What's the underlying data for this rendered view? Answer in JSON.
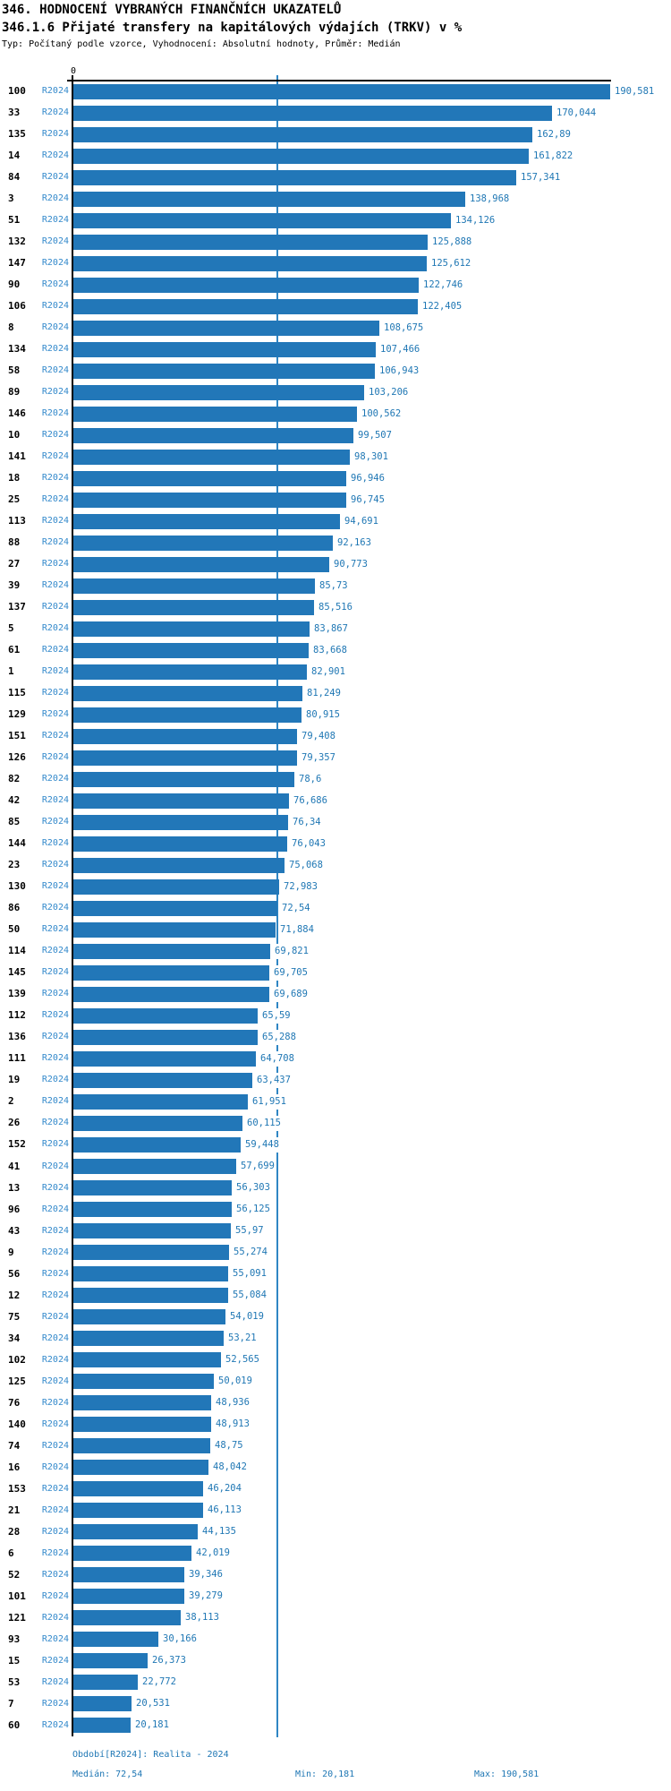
{
  "header": {
    "title": "346. HODNOCENÍ VYBRANÝCH FINANČNÍCH UKAZATELŮ",
    "subtitle": "346.1.6 Přijaté transfery na kapitálových výdajích (TRKV) v %",
    "meta": "Typ: Počítaný podle vzorce, Vyhodnocení: Absolutní hodnoty, Průměr: Medián"
  },
  "axis": {
    "zero_label": "0"
  },
  "chart_data": {
    "type": "bar",
    "orientation": "horizontal",
    "title": "346.1.6 Přijaté transfery na kapitálových výdajích (TRKV) v %",
    "series_label": "R2024",
    "xlabel": "",
    "ylabel": "",
    "xlim": [
      0,
      212
    ],
    "grid": false,
    "median_value": 72.54,
    "min_value": 20.181,
    "max_value": 190.581,
    "categories": [
      "100",
      "33",
      "135",
      "14",
      "84",
      "3",
      "51",
      "132",
      "147",
      "90",
      "106",
      "8",
      "134",
      "58",
      "89",
      "146",
      "10",
      "141",
      "18",
      "25",
      "113",
      "88",
      "27",
      "39",
      "137",
      "5",
      "61",
      "1",
      "115",
      "129",
      "151",
      "126",
      "82",
      "42",
      "85",
      "144",
      "23",
      "130",
      "86",
      "50",
      "114",
      "145",
      "139",
      "112",
      "136",
      "111",
      "19",
      "2",
      "26",
      "152",
      "41",
      "13",
      "96",
      "43",
      "9",
      "56",
      "12",
      "75",
      "34",
      "102",
      "125",
      "76",
      "140",
      "74",
      "16",
      "153",
      "21",
      "28",
      "6",
      "52",
      "101",
      "121",
      "93",
      "15",
      "53",
      "7",
      "60"
    ],
    "values": [
      190.581,
      170.044,
      162.89,
      161.822,
      157.341,
      138.968,
      134.126,
      125.888,
      125.612,
      122.746,
      122.405,
      108.675,
      107.466,
      106.943,
      103.206,
      100.562,
      99.507,
      98.301,
      96.946,
      96.745,
      94.691,
      92.163,
      90.773,
      85.73,
      85.516,
      83.867,
      83.668,
      82.901,
      81.249,
      80.915,
      79.408,
      79.357,
      78.6,
      76.686,
      76.34,
      76.043,
      75.068,
      72.983,
      72.54,
      71.884,
      69.821,
      69.705,
      69.689,
      65.59,
      65.288,
      64.708,
      63.437,
      61.951,
      60.115,
      59.448,
      57.699,
      56.303,
      56.125,
      55.97,
      55.274,
      55.091,
      55.084,
      54.019,
      53.21,
      52.565,
      50.019,
      48.936,
      48.913,
      48.75,
      48.042,
      46.204,
      46.113,
      44.135,
      42.019,
      39.346,
      39.279,
      38.113,
      30.166,
      26.373,
      22.772,
      20.531,
      20.181
    ],
    "value_labels": [
      "190,581",
      "170,044",
      "162,89",
      "161,822",
      "157,341",
      "138,968",
      "134,126",
      "125,888",
      "125,612",
      "122,746",
      "122,405",
      "108,675",
      "107,466",
      "106,943",
      "103,206",
      "100,562",
      "99,507",
      "98,301",
      "96,946",
      "96,745",
      "94,691",
      "92,163",
      "90,773",
      "85,73",
      "85,516",
      "83,867",
      "83,668",
      "82,901",
      "81,249",
      "80,915",
      "79,408",
      "79,357",
      "78,6",
      "76,686",
      "76,34",
      "76,043",
      "75,068",
      "72,983",
      "72,54",
      "71,884",
      "69,821",
      "69,705",
      "69,689",
      "65,59",
      "65,288",
      "64,708",
      "63,437",
      "61,951",
      "60,115",
      "59,448",
      "57,699",
      "56,303",
      "56,125",
      "55,97",
      "55,274",
      "55,091",
      "55,084",
      "54,019",
      "53,21",
      "52,565",
      "50,019",
      "48,936",
      "48,913",
      "48,75",
      "48,042",
      "46,204",
      "46,113",
      "44,135",
      "42,019",
      "39,346",
      "39,279",
      "38,113",
      "30,166",
      "26,373",
      "22,772",
      "20,531",
      "20,181"
    ]
  },
  "footer": {
    "period_line": "Období[R2024]: Realita - 2024",
    "median": "Medián: 72,54",
    "min": "Min: 20,181",
    "max": "Max: 190,581"
  },
  "colors": {
    "bar": "#2277b8",
    "value_label": "#1f77b4",
    "period_label": "#3389cb",
    "median_line": "#2f86c4",
    "footer_text": "#1f77b4",
    "axis": "#000000"
  }
}
